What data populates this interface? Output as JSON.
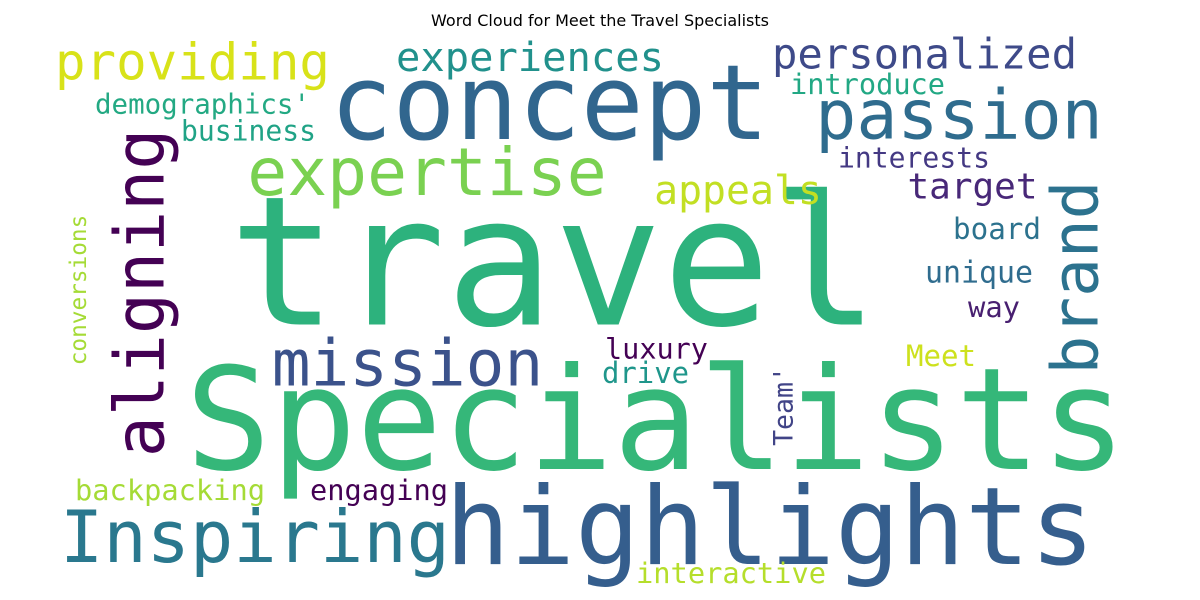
{
  "title": "Word Cloud for Meet the Travel Specialists",
  "words": [
    {
      "text": "travel",
      "color": "#2db27d"
    },
    {
      "text": "Specialists",
      "color": "#35b779"
    },
    {
      "text": "highlights",
      "color": "#355e8d"
    },
    {
      "text": "concept",
      "color": "#31668e"
    },
    {
      "text": "Inspiring",
      "color": "#2a788e"
    },
    {
      "text": "aligning",
      "color": "#440154"
    },
    {
      "text": "passion",
      "color": "#2f6c8e"
    },
    {
      "text": "expertise",
      "color": "#7ad151"
    },
    {
      "text": "mission",
      "color": "#3b528b"
    },
    {
      "text": "brand",
      "color": "#2c728e"
    },
    {
      "text": "providing",
      "color": "#d8e219"
    },
    {
      "text": "personalized",
      "color": "#3e4a89"
    },
    {
      "text": "experiences",
      "color": "#21918c"
    },
    {
      "text": "appeals",
      "color": "#c2df23"
    },
    {
      "text": "target",
      "color": "#482878"
    },
    {
      "text": "demographics'",
      "color": "#23a983"
    },
    {
      "text": "business",
      "color": "#20a386"
    },
    {
      "text": "introduce",
      "color": "#22a884"
    },
    {
      "text": "interests",
      "color": "#443983"
    },
    {
      "text": "board",
      "color": "#2c728e"
    },
    {
      "text": "unique",
      "color": "#2f6c8e"
    },
    {
      "text": "way",
      "color": "#481f70"
    },
    {
      "text": "Meet",
      "color": "#cde11d"
    },
    {
      "text": "luxury",
      "color": "#440154"
    },
    {
      "text": "drive",
      "color": "#1f968b"
    },
    {
      "text": "conversions",
      "color": "#a5db36"
    },
    {
      "text": "Team'",
      "color": "#414487"
    },
    {
      "text": "backpacking",
      "color": "#a5db36"
    },
    {
      "text": "engaging",
      "color": "#440154"
    },
    {
      "text": "interactive",
      "color": "#b5de2b"
    }
  ]
}
